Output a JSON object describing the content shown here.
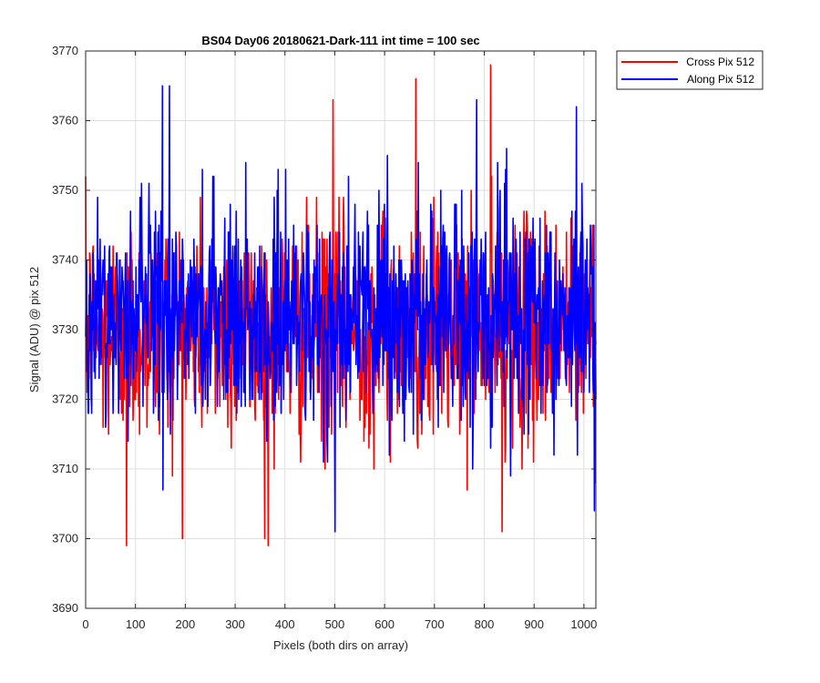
{
  "chart_data": {
    "type": "line",
    "title": "BS04 Day06 20180621-Dark-111 int time = 100 sec",
    "xlabel": "Pixels (both dirs on array)",
    "ylabel": "Signal (ADU) @ pix 512",
    "xlim": [
      0,
      1024
    ],
    "ylim": [
      3690,
      3770
    ],
    "xticks": [
      0,
      100,
      200,
      300,
      400,
      500,
      600,
      700,
      800,
      900,
      1000
    ],
    "yticks": [
      3690,
      3700,
      3710,
      3720,
      3730,
      3740,
      3750,
      3760,
      3770
    ],
    "grid": true,
    "legend_position": "outside-top-right",
    "series": [
      {
        "name": "Cross Pix 512",
        "color": "#ff0000",
        "num_points": 1024,
        "mean": 3730,
        "std": 8,
        "min": 3699,
        "max": 3768,
        "notable_points": [
          {
            "x": 82,
            "y": 3699
          },
          {
            "x": 366,
            "y": 3699
          },
          {
            "x": 496,
            "y": 3763
          },
          {
            "x": 662,
            "y": 3766
          },
          {
            "x": 812,
            "y": 3768
          },
          {
            "x": 835,
            "y": 3701
          }
        ]
      },
      {
        "name": "Along Pix 512",
        "color": "#0000ff",
        "num_points": 1024,
        "mean": 3732,
        "std": 8,
        "min": 3701,
        "max": 3765,
        "notable_points": [
          {
            "x": 154,
            "y": 3765
          },
          {
            "x": 168,
            "y": 3765
          },
          {
            "x": 500,
            "y": 3701
          },
          {
            "x": 784,
            "y": 3763
          },
          {
            "x": 984,
            "y": 3762
          },
          {
            "x": 1020,
            "y": 3704
          }
        ]
      }
    ]
  }
}
